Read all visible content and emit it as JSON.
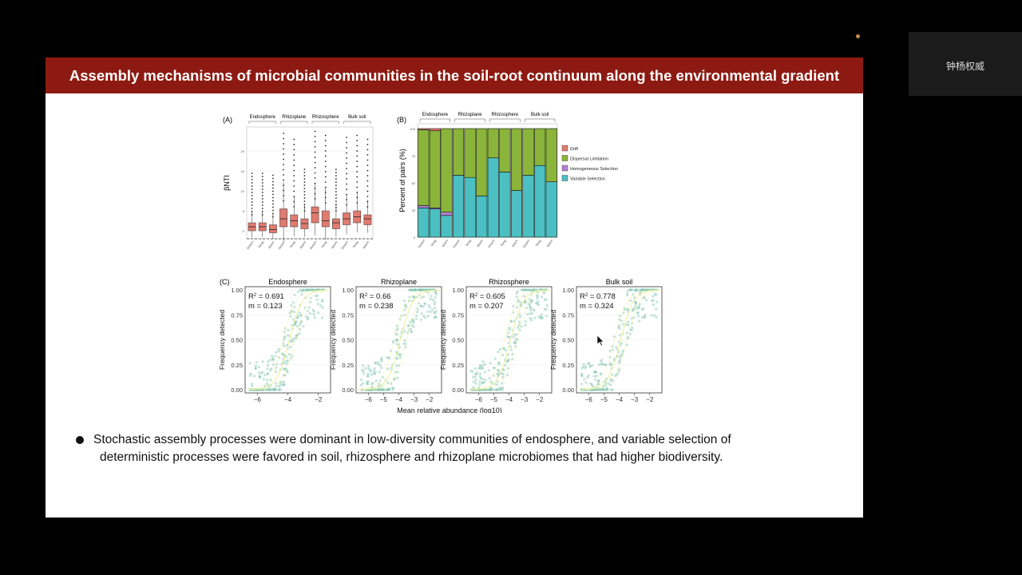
{
  "title": "Assembly mechanisms of microbial communities in the soil-root continuum along the environmental gradient",
  "participant": {
    "name": "钟杨权威"
  },
  "bullet": {
    "line1": "Stochastic assembly processes were dominant in low-diversity communities of endosphere, and variable selection of",
    "line2": "deterministic processes were favored in soil, rhizosphere and rhizoplane microbiomes that had higher biodiversity."
  },
  "colors": {
    "title_bg": "#8d1a12",
    "box": "#e07b6f",
    "drift": "#e07b6f",
    "dispersal": "#8ab43a",
    "homogeneous": "#b57fd6",
    "variable": "#4bbfc2",
    "scatter": "#7fc4b0"
  },
  "chart_data": [
    {
      "type": "boxplot",
      "panel": "(A)",
      "ylabel": "βNTI",
      "groups": [
        "Endosphere",
        "Rhizoplane",
        "Rhizosphere",
        "Bulk soil"
      ],
      "categories": [
        "Desert",
        "Temp",
        "Warm",
        "Desert",
        "Temp",
        "Warm",
        "Desert",
        "Temp",
        "Warm",
        "Desert",
        "Temp",
        "Warm"
      ],
      "yticks": [
        0,
        5,
        10,
        15,
        20
      ],
      "ylim": [
        -2,
        26
      ],
      "reference_line": -2,
      "medians": [
        1,
        1,
        0.3,
        3,
        2.5,
        1.8,
        4.5,
        2.5,
        2,
        3,
        3.5,
        3
      ],
      "q1": [
        0,
        0,
        -0.5,
        1,
        1,
        0.5,
        2,
        1,
        0.5,
        1.5,
        2,
        1.5
      ],
      "q3": [
        2,
        2,
        1.5,
        5.5,
        4,
        3,
        6,
        5,
        3,
        4.5,
        5,
        4
      ]
    },
    {
      "type": "stacked-bar",
      "panel": "(B)",
      "ylabel": "Percent of pairs (%)",
      "groups": [
        "Endosphere",
        "Rhizoplane",
        "Rhizosphere",
        "Bulk soil"
      ],
      "categories": [
        "Desert",
        "Temp",
        "Warm",
        "Desert",
        "Temp",
        "Warm",
        "Desert",
        "Temp",
        "Warm",
        "Desert",
        "Temp",
        "Warm"
      ],
      "yticks": [
        0,
        25,
        50,
        75,
        100
      ],
      "ylim": [
        0,
        100
      ],
      "series": [
        {
          "name": "Variable Selection",
          "values": [
            27,
            26,
            20,
            57,
            55,
            38,
            73,
            60,
            43,
            57,
            66,
            51
          ]
        },
        {
          "name": "Homogeneous Selection",
          "values": [
            2,
            1,
            3,
            0,
            0,
            0,
            0,
            0,
            0,
            0,
            0,
            0
          ]
        },
        {
          "name": "Dispersal Limitation",
          "values": [
            70,
            71,
            77,
            43,
            45,
            62,
            27,
            40,
            57,
            43,
            34,
            49
          ]
        },
        {
          "name": "Drift",
          "values": [
            1,
            2,
            0,
            0,
            0,
            0,
            0,
            0,
            0,
            0,
            0,
            0
          ]
        }
      ],
      "legend": [
        "Drift",
        "Dispersal Limitation",
        "Homogeneous Selection",
        "Variable Selection"
      ],
      "legend_position": "right"
    },
    {
      "type": "scatter",
      "panel": "(C)",
      "xlabel": "Mean relative abundance (log10)",
      "ylabel": "Frequency detected",
      "yticks": [
        "0.00",
        "0.25",
        "0.50",
        "0.75",
        "1.00"
      ],
      "facets": [
        {
          "name": "Endosphere",
          "r2": "0.691",
          "m": "0.123",
          "xticks": [
            "−6",
            "−4",
            "−2"
          ],
          "xlim": [
            -6.8,
            -1.2
          ]
        },
        {
          "name": "Rhizoplane",
          "r2": "0.66",
          "m": "0.238",
          "xticks": [
            "−6",
            "−5",
            "−4",
            "−3",
            "−2"
          ],
          "xlim": [
            -6.8,
            -1.2
          ]
        },
        {
          "name": "Rhizosphere",
          "r2": "0.605",
          "m": "0.207",
          "xticks": [
            "−6",
            "−5",
            "−4",
            "−3",
            "−2"
          ],
          "xlim": [
            -6.8,
            -1.2
          ]
        },
        {
          "name": "Bulk soil",
          "r2": "0.778",
          "m": "0.324",
          "xticks": [
            "−6",
            "−5",
            "−4",
            "−3",
            "−2"
          ],
          "xlim": [
            -6.8,
            -1.2
          ]
        }
      ]
    }
  ]
}
